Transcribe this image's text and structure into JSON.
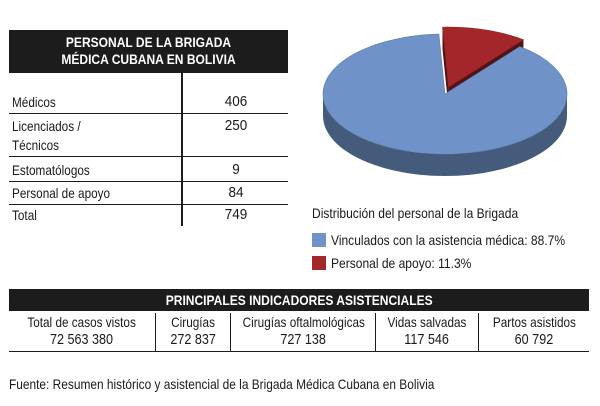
{
  "staff": {
    "title_line1": "PERSONAL DE LA BRIGADA",
    "title_line2": "MÉDICA CUBANA EN BOLIVIA",
    "rows": [
      {
        "label": "Médicos",
        "value": "406"
      },
      {
        "label": "Licenciados / Técnicos",
        "label_line1": "Licenciados /",
        "label_line2": "Técnicos",
        "value": "250"
      },
      {
        "label": "Estomatólogos",
        "value": "9"
      },
      {
        "label": "Personal de apoyo",
        "value": "84"
      },
      {
        "label": "Total",
        "value": "749"
      }
    ]
  },
  "chart_data": {
    "type": "pie",
    "title": "Distribución del personal de la Brigada",
    "slices": [
      {
        "label": "Vinculados con la asistencia médica",
        "value": 88.7,
        "legend_text": "Vinculados con la asistencia médica: 88.7%",
        "color": "#6f93c8"
      },
      {
        "label": "Personal de apoyo",
        "value": 11.3,
        "legend_text": "Personal de apoyo: 11.3%",
        "color": "#a3262b"
      }
    ],
    "style": "3d",
    "exploded": "Personal de apoyo",
    "legend_placement": "bottom-right"
  },
  "indicators": {
    "title": "PRINCIPALES INDICADORES ASISTENCIALES",
    "columns": [
      {
        "label": "Total de casos vistos",
        "value": "72 563 380"
      },
      {
        "label": "Cirugías",
        "value": "272 837"
      },
      {
        "label": "Cirugías oftalmológicas",
        "value": "727 138"
      },
      {
        "label": "Vidas salvadas",
        "value": "117 546"
      },
      {
        "label": "Partos asistidos",
        "value": "60 792"
      }
    ]
  },
  "source": "Fuente: Resumen histórico y asistencial de la Brigada Médica Cubana en Bolivia"
}
